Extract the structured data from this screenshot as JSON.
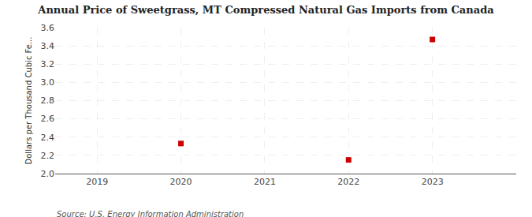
{
  "chart_data": {
    "type": "scatter",
    "title": "Annual Price of Sweetgrass, MT Compressed Natural Gas Imports from Canada",
    "ylabel": "Dollars per Thousand Cubic Fe...",
    "x": [
      2020,
      2022,
      2023
    ],
    "values": [
      2.33,
      2.15,
      3.47
    ],
    "color": "#cc0000",
    "marker": "square",
    "xlim": [
      2018.5,
      2024.0
    ],
    "ylim": [
      2.0,
      3.6
    ],
    "xticks": [
      2019,
      2020,
      2021,
      2022,
      2023
    ],
    "yticks": [
      {
        "value": 2.0,
        "label": "2.0"
      },
      2.2,
      2.4,
      2.6,
      2.8,
      {
        "value": 3.0,
        "label": "3.0"
      },
      3.2,
      3.4,
      3.6
    ],
    "grid": true,
    "annotations": [
      "Source: U.S. Energy Information Administration"
    ]
  }
}
